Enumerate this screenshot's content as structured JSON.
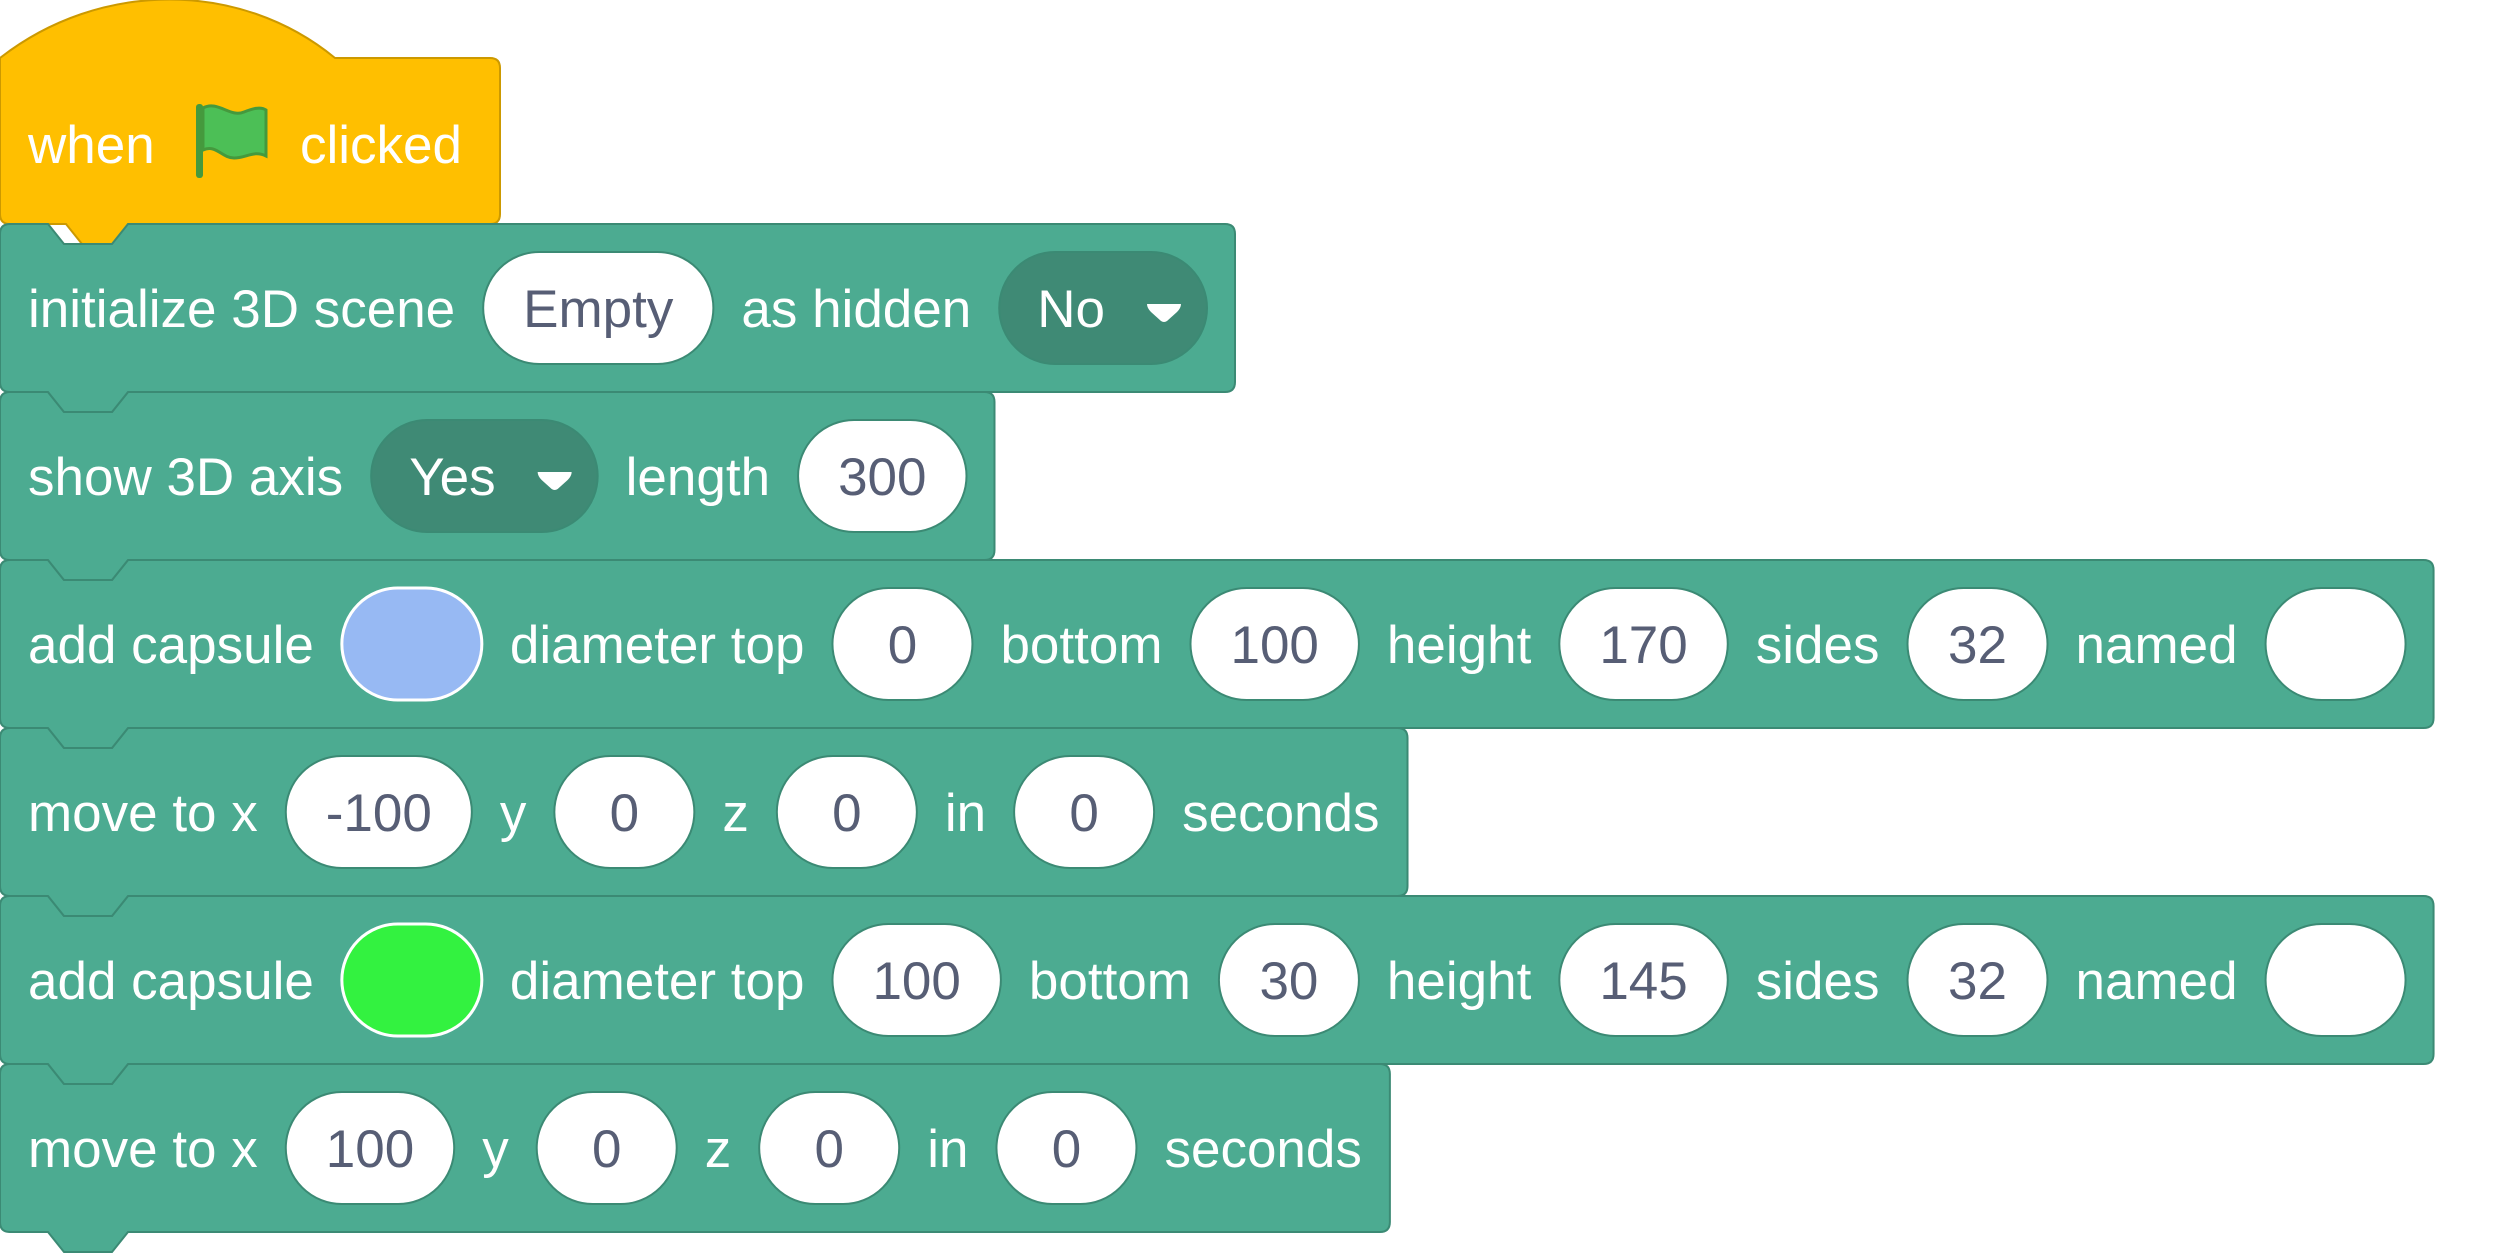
{
  "colors": {
    "event_block": "#ffbf00",
    "event_stroke": "#cc9900",
    "extension_block": "#4cab91",
    "extension_stroke": "#3b8a74",
    "dropdown_fill": "#3f8a75",
    "input_text": "#575e75",
    "flag_green": "#4cbf56",
    "flag_stroke": "#45993d"
  },
  "hat": {
    "text1": "when",
    "icon": "green-flag-icon",
    "text2": "clicked"
  },
  "blocks": [
    {
      "name": "initialize-3d-scene",
      "parts": [
        {
          "t": "label",
          "v": "initialize 3D scene"
        },
        {
          "t": "input",
          "v": "Empty"
        },
        {
          "t": "label",
          "v": "as hidden"
        },
        {
          "t": "dropdown",
          "v": "No"
        }
      ]
    },
    {
      "name": "show-3d-axis",
      "parts": [
        {
          "t": "label",
          "v": "show 3D axis"
        },
        {
          "t": "dropdown",
          "v": "Yes"
        },
        {
          "t": "label",
          "v": "length"
        },
        {
          "t": "input",
          "v": "300"
        }
      ]
    },
    {
      "name": "add-capsule",
      "parts": [
        {
          "t": "label",
          "v": "add capsule"
        },
        {
          "t": "color",
          "v": "#97b9f3"
        },
        {
          "t": "label",
          "v": "diameter top"
        },
        {
          "t": "input",
          "v": "0"
        },
        {
          "t": "label",
          "v": "bottom"
        },
        {
          "t": "input",
          "v": "100"
        },
        {
          "t": "label",
          "v": "height"
        },
        {
          "t": "input",
          "v": "170"
        },
        {
          "t": "label",
          "v": "sides"
        },
        {
          "t": "input",
          "v": "32"
        },
        {
          "t": "label",
          "v": "named"
        },
        {
          "t": "input",
          "v": ""
        }
      ]
    },
    {
      "name": "move-to",
      "parts": [
        {
          "t": "label",
          "v": "move to x"
        },
        {
          "t": "input",
          "v": "-100"
        },
        {
          "t": "label",
          "v": "y"
        },
        {
          "t": "input",
          "v": "0"
        },
        {
          "t": "label",
          "v": "z"
        },
        {
          "t": "input",
          "v": "0"
        },
        {
          "t": "label",
          "v": "in"
        },
        {
          "t": "input",
          "v": "0"
        },
        {
          "t": "label",
          "v": "seconds"
        }
      ]
    },
    {
      "name": "add-capsule",
      "parts": [
        {
          "t": "label",
          "v": "add capsule"
        },
        {
          "t": "color",
          "v": "#33f240"
        },
        {
          "t": "label",
          "v": "diameter top"
        },
        {
          "t": "input",
          "v": "100"
        },
        {
          "t": "label",
          "v": "bottom"
        },
        {
          "t": "input",
          "v": "30"
        },
        {
          "t": "label",
          "v": "height"
        },
        {
          "t": "input",
          "v": "145"
        },
        {
          "t": "label",
          "v": "sides"
        },
        {
          "t": "input",
          "v": "32"
        },
        {
          "t": "label",
          "v": "named"
        },
        {
          "t": "input",
          "v": ""
        }
      ]
    },
    {
      "name": "move-to",
      "parts": [
        {
          "t": "label",
          "v": "move to x"
        },
        {
          "t": "input",
          "v": "100"
        },
        {
          "t": "label",
          "v": "y"
        },
        {
          "t": "input",
          "v": "0"
        },
        {
          "t": "label",
          "v": "z"
        },
        {
          "t": "input",
          "v": "0"
        },
        {
          "t": "label",
          "v": "in"
        },
        {
          "t": "input",
          "v": "0"
        },
        {
          "t": "label",
          "v": "seconds"
        }
      ]
    }
  ]
}
